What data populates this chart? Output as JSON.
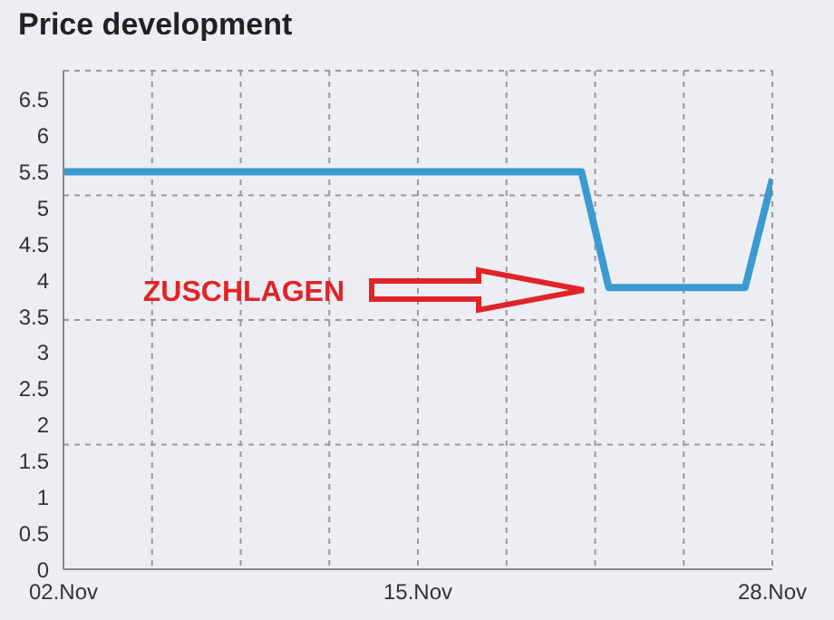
{
  "chart_data": {
    "type": "line",
    "title": "Price development",
    "x": [
      "--11-02",
      "--11-21",
      "--11-22",
      "--11-27",
      "--11-28"
    ],
    "series": [
      {
        "color": "#3a9bd0",
        "values": [
          5.5,
          5.5,
          3.9,
          3.9,
          5.4
        ]
      }
    ],
    "xlim": [
      "--11-02",
      "--11-28"
    ],
    "xticks": [
      {
        "value": "--11-02",
        "label": "02.Nov"
      },
      {
        "value": "--11-15",
        "label": "15.Nov"
      },
      {
        "value": "--11-28",
        "label": "28.Nov"
      }
    ],
    "ylim": [
      0,
      6.9
    ],
    "yticks": [
      0,
      0.5,
      1,
      1.5,
      2,
      2.5,
      3,
      3.5,
      4,
      4.5,
      5,
      5.5,
      6,
      6.5
    ],
    "grid": true,
    "marker": "none",
    "line_style": "solid",
    "annotations": [
      "ZUSCHLAGEN"
    ]
  }
}
